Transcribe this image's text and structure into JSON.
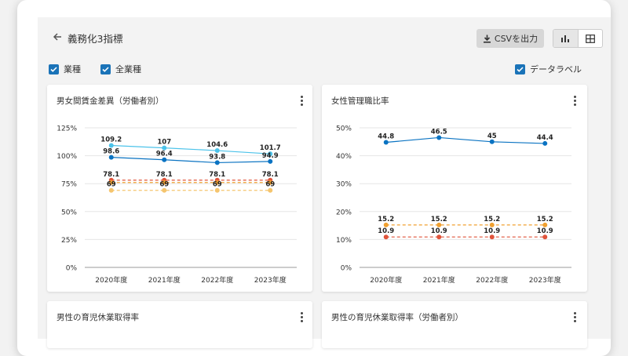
{
  "header": {
    "title": "義務化3指標",
    "csv_label": "CSVを出力",
    "chart_view_icon": "bar-chart-icon",
    "table_view_icon": "table-grid-icon"
  },
  "filters": {
    "industry_label": "業種",
    "all_industries_label": "全業種",
    "data_label_toggle": "データラベル"
  },
  "colors": {
    "accent": "#1a73b8",
    "line_blue_dark": "#0a73c2",
    "line_blue_light": "#4cc3ea",
    "line_orange": "#f0a030",
    "line_orange_light": "#f5c56e",
    "line_red": "#e0533a"
  },
  "cards": [
    {
      "title": "男女間賃金差異（労働者別）"
    },
    {
      "title": "女性管理職比率"
    },
    {
      "title": "男性の育児休業取得率"
    },
    {
      "title": "男性の育児休業取得率（労働者別）"
    }
  ],
  "chart_data": [
    {
      "type": "line",
      "title": "男女間賃金差異（労働者別）",
      "categories": [
        "2020年度",
        "2021年度",
        "2022年度",
        "2023年度"
      ],
      "ylim": [
        0,
        125
      ],
      "yticks": [
        "0%",
        "25%",
        "50%",
        "75%",
        "100%",
        "125%"
      ],
      "series": [
        {
          "values": [
            109.2,
            107,
            104.6,
            101.7
          ],
          "labels": [
            "109.2",
            "107",
            "104.6",
            "101.7"
          ],
          "color": "#4cc3ea",
          "dashed": false
        },
        {
          "values": [
            98.6,
            96.4,
            93.8,
            94.9
          ],
          "labels": [
            "98.6",
            "96.4",
            "93.8",
            "94.9"
          ],
          "color": "#0a73c2",
          "dashed": false
        },
        {
          "values": [
            78.1,
            78.1,
            78.1,
            78.1
          ],
          "labels": [
            "78.1",
            "78.1",
            "78.1",
            "78.1"
          ],
          "color": "#e0533a",
          "dashed": true
        },
        {
          "values": [
            76.0,
            76.0,
            76.0,
            76.0
          ],
          "labels": [],
          "color": "#f0a030",
          "dashed": true
        },
        {
          "values": [
            69,
            69,
            69,
            69
          ],
          "labels": [
            "69",
            "69",
            "69",
            "69"
          ],
          "color": "#f5c56e",
          "dashed": true
        }
      ]
    },
    {
      "type": "line",
      "title": "女性管理職比率",
      "categories": [
        "2020年度",
        "2021年度",
        "2022年度",
        "2023年度"
      ],
      "ylim": [
        0,
        50
      ],
      "yticks": [
        "0%",
        "10%",
        "20%",
        "30%",
        "40%",
        "50%"
      ],
      "series": [
        {
          "values": [
            44.8,
            46.5,
            45,
            44.4
          ],
          "labels": [
            "44.8",
            "46.5",
            "45",
            "44.4"
          ],
          "color": "#0a73c2",
          "dashed": false
        },
        {
          "values": [
            15.2,
            15.2,
            15.2,
            15.2
          ],
          "labels": [
            "15.2",
            "15.2",
            "15.2",
            "15.2"
          ],
          "color": "#f0a030",
          "dashed": true
        },
        {
          "values": [
            10.9,
            10.9,
            10.9,
            10.9
          ],
          "labels": [
            "10.9",
            "10.9",
            "10.9",
            "10.9"
          ],
          "color": "#e0533a",
          "dashed": true
        }
      ]
    }
  ]
}
